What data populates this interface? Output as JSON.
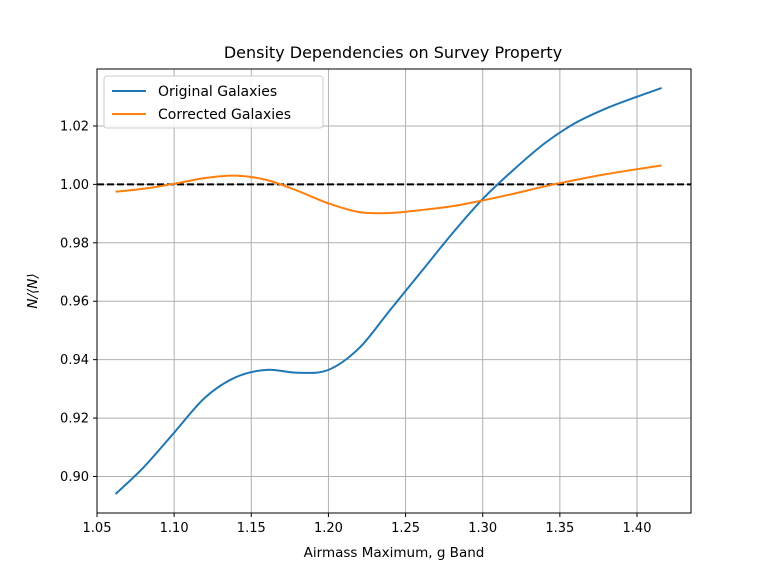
{
  "chart_data": {
    "type": "line",
    "title": "Density Dependencies on Survey Property",
    "xlabel": "Airmass Maximum, g Band",
    "ylabel": "N/⟨N⟩",
    "xlim": [
      1.05,
      1.435
    ],
    "ylim": [
      0.8875,
      1.0395
    ],
    "xticks": [
      1.05,
      1.1,
      1.15,
      1.2,
      1.25,
      1.3,
      1.35,
      1.4
    ],
    "xtick_labels": [
      "1.05",
      "1.10",
      "1.15",
      "1.20",
      "1.25",
      "1.30",
      "1.35",
      "1.40"
    ],
    "yticks": [
      0.9,
      0.92,
      0.94,
      0.96,
      0.98,
      1.0,
      1.02
    ],
    "ytick_labels": [
      "0.90",
      "0.92",
      "0.94",
      "0.96",
      "0.98",
      "1.00",
      "1.02"
    ],
    "grid": true,
    "legend_position": "top-left",
    "reference_line": {
      "y": 1.0,
      "color": "#000000",
      "style": "dashed"
    },
    "series": [
      {
        "name": "Original Galaxies",
        "color": "#1f77b4",
        "x": [
          1.062,
          1.08,
          1.1,
          1.12,
          1.14,
          1.16,
          1.18,
          1.2,
          1.22,
          1.24,
          1.26,
          1.28,
          1.3,
          1.32,
          1.34,
          1.36,
          1.38,
          1.4,
          1.416
        ],
        "y": [
          0.894,
          0.903,
          0.915,
          0.927,
          0.934,
          0.9365,
          0.9355,
          0.9365,
          0.944,
          0.957,
          0.97,
          0.983,
          0.995,
          1.005,
          1.014,
          1.021,
          1.026,
          1.03,
          1.033
        ]
      },
      {
        "name": "Corrected Galaxies",
        "color": "#ff7f0e",
        "x": [
          1.062,
          1.08,
          1.1,
          1.12,
          1.14,
          1.16,
          1.18,
          1.2,
          1.22,
          1.24,
          1.26,
          1.28,
          1.3,
          1.32,
          1.34,
          1.36,
          1.38,
          1.4,
          1.416
        ],
        "y": [
          0.9975,
          0.9985,
          1.0002,
          1.0022,
          1.003,
          1.0015,
          0.9978,
          0.9935,
          0.9905,
          0.9902,
          0.9912,
          0.9925,
          0.9945,
          0.9968,
          0.9993,
          1.0015,
          1.0035,
          1.0052,
          1.0065
        ]
      }
    ]
  }
}
